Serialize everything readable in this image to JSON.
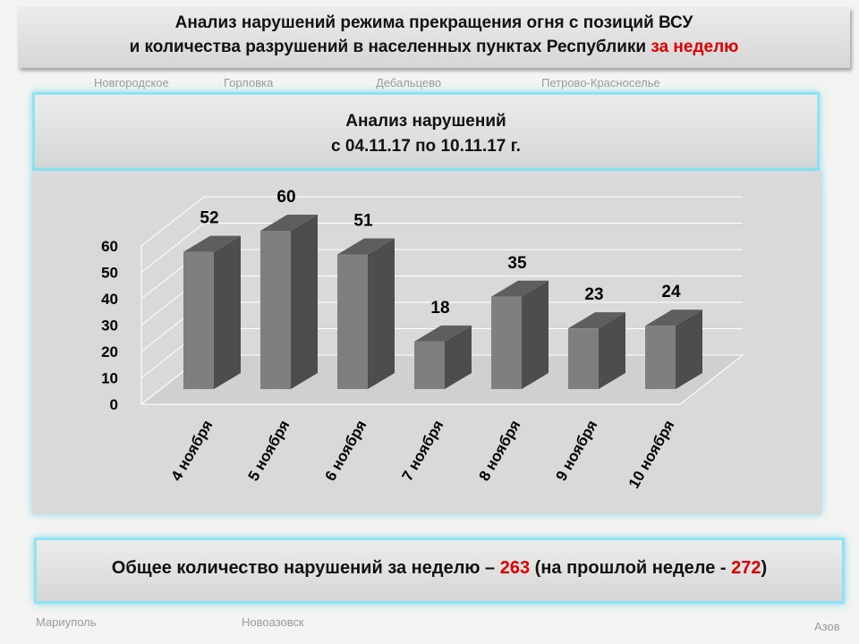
{
  "header": {
    "line1": "Анализ нарушений режима прекращения огня с позиций ВСУ",
    "line2": "и количества разрушений в населенных пунктах Республики",
    "highlight": "за неделю"
  },
  "map_labels": [
    "Горловка",
    "Дебальцево",
    "Новгородское",
    "Петрово-Красноселье",
    "Мариуполь",
    "Новоазовск",
    "Азов"
  ],
  "chart_data": {
    "type": "bar3d",
    "title": "Анализ нарушений",
    "subtitle": "с 04.11.17 по 10.11.17 г.",
    "categories": [
      "4 ноября",
      "5 ноября",
      "6 ноября",
      "7 ноября",
      "8 ноября",
      "9 ноября",
      "10 ноября"
    ],
    "values": [
      52,
      60,
      51,
      18,
      35,
      23,
      24
    ],
    "color": "#7f7f7f",
    "ylim": [
      0,
      60
    ],
    "yticks": [
      0,
      10,
      20,
      30,
      40,
      50,
      60
    ],
    "grid": true
  },
  "footer": {
    "text": "Общее количество нарушений за неделю –",
    "total": 263,
    "previous_text": "(на прошлой неделе -",
    "previous": 272,
    "closing": ")"
  }
}
